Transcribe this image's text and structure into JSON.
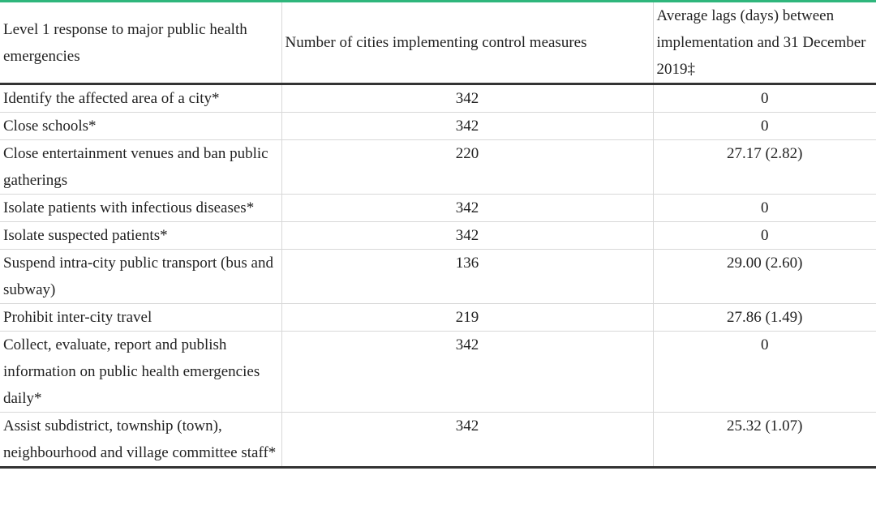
{
  "table": {
    "header": [
      "Level 1 response to major public health emergencies",
      "Number of cities implementing control measures",
      "Average lags (days) between implementation and 31 December 2019‡"
    ],
    "rows": [
      [
        "Identify the affected area of a city*",
        342,
        0
      ],
      [
        "Close schools*",
        342,
        0
      ],
      [
        "Close entertainment venues and ban public gatherings",
        220,
        "27.17 (2.82)"
      ],
      [
        "Isolate patients with infectious diseases*",
        342,
        0
      ],
      [
        "Isolate suspected patients*",
        342,
        0
      ],
      [
        "Suspend intra-city public transport (bus and subway)",
        136,
        "29.00 (2.60)"
      ],
      [
        "Prohibit inter-city travel",
        219,
        "27.86 (1.49)"
      ],
      [
        "Collect, evaluate, report and publish information on public health emergencies daily*",
        342,
        0
      ],
      [
        "Assist subdistrict, township (town), neighbourhood and village committee staff*",
        342,
        "25.32 (1.07)"
      ]
    ]
  }
}
